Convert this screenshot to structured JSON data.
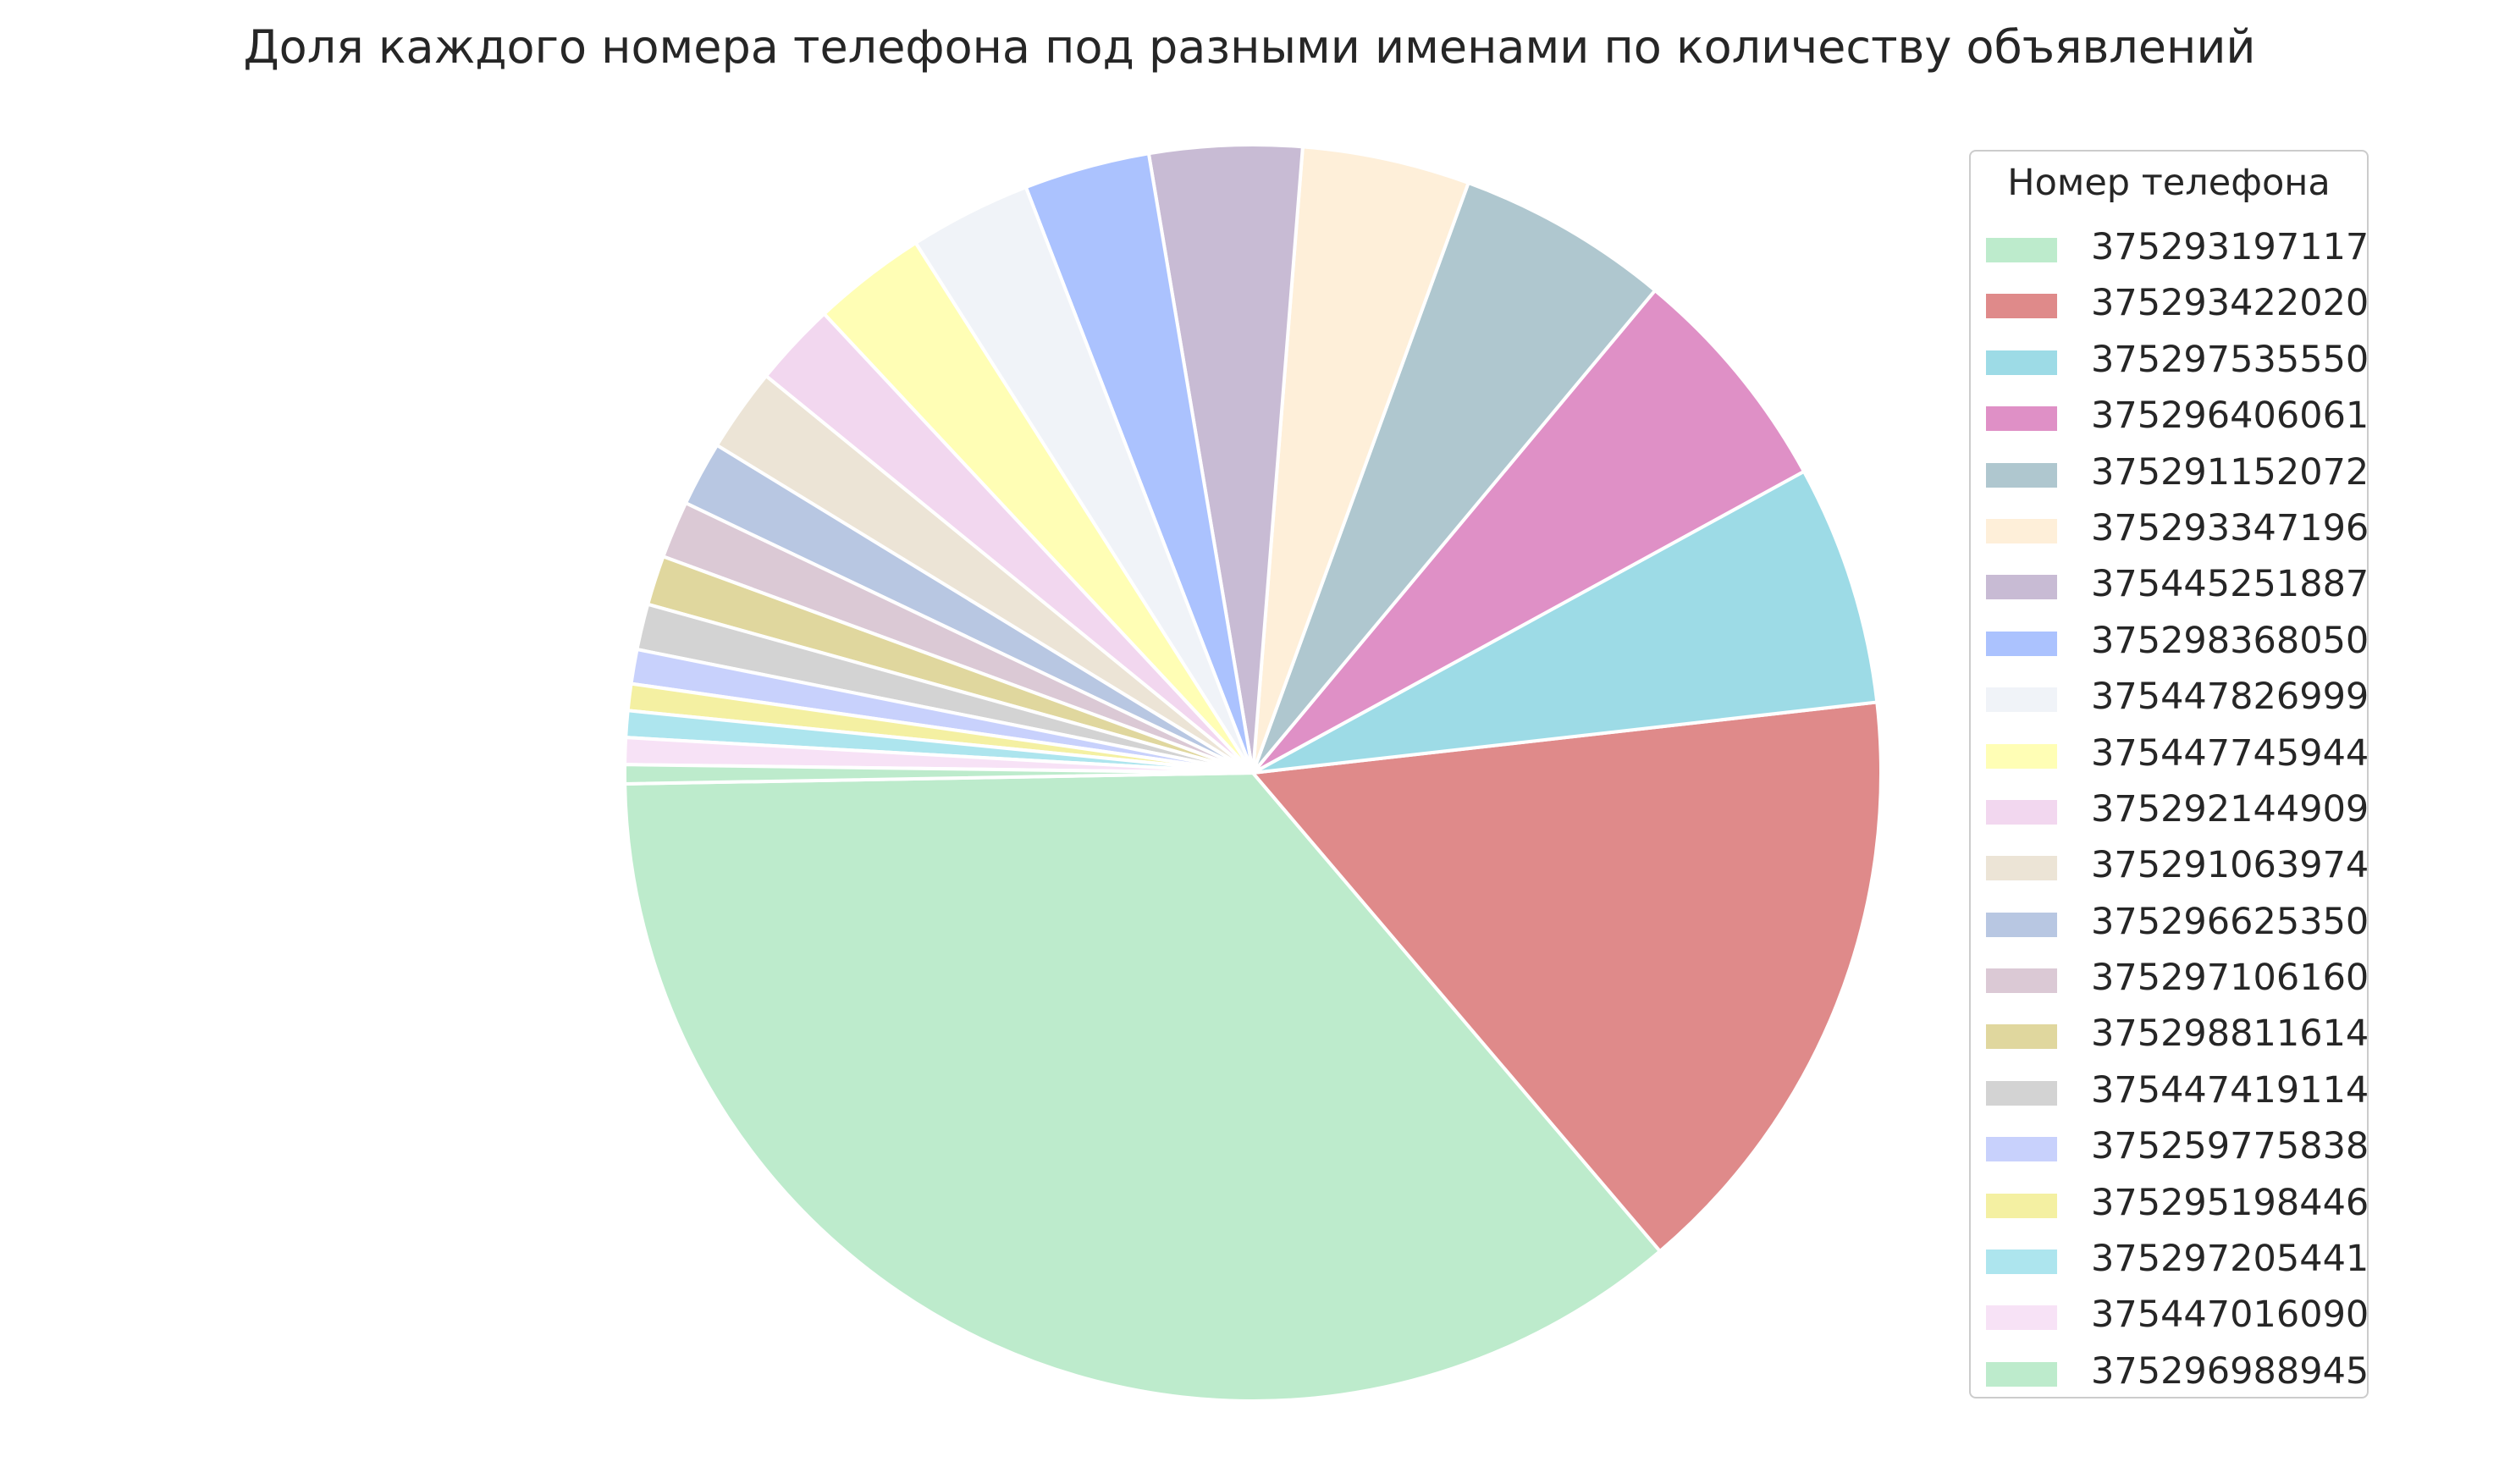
{
  "chart_data": {
    "type": "pie",
    "title": "Доля каждого номера телефона под разными именами по количеству объявлений",
    "legend_title": "Номер телефона",
    "legend_position": "right",
    "start_angle_deg": 181,
    "direction": "counterclockwise",
    "slices": [
      {
        "label": "375293197117",
        "value": 36.7,
        "color": "#bdebcc"
      },
      {
        "label": "375293422020",
        "value": 15.9,
        "color": "#df8a8a"
      },
      {
        "label": "375297535550",
        "value": 6.3,
        "color": "#9ddbe6"
      },
      {
        "label": "375296406061",
        "value": 6.1,
        "color": "#df90c6"
      },
      {
        "label": "375291152072",
        "value": 5.6,
        "color": "#afc7cf"
      },
      {
        "label": "375293347196",
        "value": 4.4,
        "color": "#feefd9"
      },
      {
        "label": "375445251887",
        "value": 4.0,
        "color": "#c8bbd4"
      },
      {
        "label": "375298368050",
        "value": 3.3,
        "color": "#abc2fe"
      },
      {
        "label": "375447826999",
        "value": 3.2,
        "color": "#f0f3f8"
      },
      {
        "label": "375447745944",
        "value": 3.0,
        "color": "#fffeb5"
      },
      {
        "label": "375292144909",
        "value": 2.2,
        "color": "#f2d7ef"
      },
      {
        "label": "375291063974",
        "value": 2.2,
        "color": "#ece4d6"
      },
      {
        "label": "375296625350",
        "value": 1.7,
        "color": "#b8c7e2"
      },
      {
        "label": "375297106160",
        "value": 1.5,
        "color": "#dbc9d5"
      },
      {
        "label": "375298811614",
        "value": 1.3,
        "color": "#e0d79e"
      },
      {
        "label": "375447419114",
        "value": 1.2,
        "color": "#d3d3d3"
      },
      {
        "label": "375259775838",
        "value": 0.9,
        "color": "#c8d1fc"
      },
      {
        "label": "375295198446",
        "value": 0.7,
        "color": "#f4f0a2"
      },
      {
        "label": "375297205441",
        "value": 0.7,
        "color": "#ade5ee"
      },
      {
        "label": "375447016090",
        "value": 0.7,
        "color": "#f7e2f6"
      },
      {
        "label": "375296988945",
        "value": 0.5,
        "color": "#bdebcc"
      }
    ]
  }
}
